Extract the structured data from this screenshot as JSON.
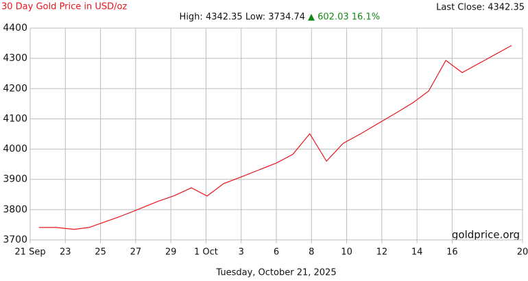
{
  "chart_data": {
    "type": "line",
    "title": "30 Day Gold Price in USD/oz",
    "stats": "High: 4342.35 Low: 3734.74",
    "change": "▲ 602.03 16.1%",
    "last_close": "Last Close: 4342.35",
    "watermark": "goldprice.org",
    "x_label": "Tuesday, October 21, 2025",
    "series": [
      {
        "color": "#e8141b",
        "x": [
          0.5,
          1.48,
          2.5,
          3.35,
          4.13,
          5.1,
          6.1,
          7.25,
          8.15,
          9.17,
          10.06,
          11.0,
          12.0,
          13.0,
          14.0,
          14.94,
          15.9,
          16.85,
          17.8,
          18.8,
          19.8,
          20.8,
          21.76,
          22.66,
          23.64,
          24.57,
          27.38
        ],
        "values": [
          3741,
          3741,
          3735,
          3741,
          3757,
          3777,
          3800,
          3827,
          3845,
          3872,
          3845,
          3886,
          3908,
          3931,
          3954,
          3983,
          4051,
          3960,
          4019,
          4051,
          4085,
          4119,
          4153,
          4192,
          4293,
          4253,
          4342.35
        ]
      }
    ],
    "xlim": [
      0,
      28
    ],
    "xticks": [
      {
        "value": 0,
        "label": "21 Sep"
      },
      {
        "value": 2,
        "label": "23"
      },
      {
        "value": 4,
        "label": "25"
      },
      {
        "value": 6,
        "label": "27"
      },
      {
        "value": 8,
        "label": "29"
      },
      {
        "value": 10,
        "label": "1 Oct"
      },
      {
        "value": 12,
        "label": "3"
      },
      {
        "value": 14,
        "label": "6"
      },
      {
        "value": 16,
        "label": "8"
      },
      {
        "value": 18,
        "label": "10"
      },
      {
        "value": 20,
        "label": "12"
      },
      {
        "value": 22,
        "label": "14"
      },
      {
        "value": 24,
        "label": "16"
      },
      {
        "value": 28,
        "label": "20"
      }
    ],
    "ylim": [
      3700,
      4400
    ],
    "yticks": [
      3700,
      3800,
      3900,
      4000,
      4100,
      4200,
      4300,
      4400
    ],
    "grid": true
  }
}
